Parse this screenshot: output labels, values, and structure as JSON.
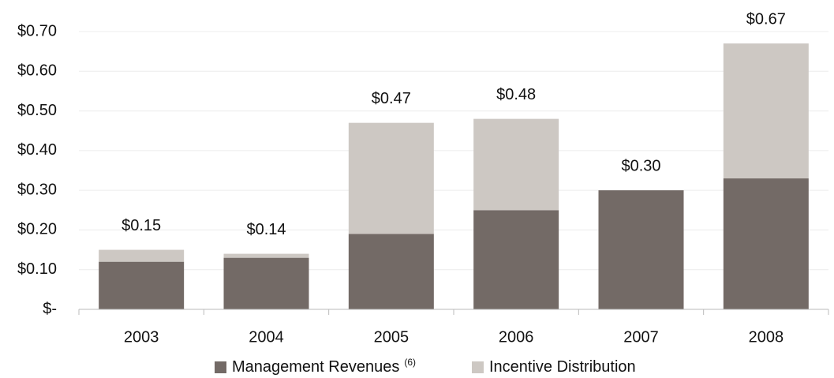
{
  "chart_data": {
    "type": "stacked_bar",
    "categories": [
      "2003",
      "2004",
      "2005",
      "2006",
      "2007",
      "2008"
    ],
    "series": [
      {
        "name": "Management Revenues",
        "color": "#736a66",
        "values": [
          0.12,
          0.13,
          0.19,
          0.25,
          0.3,
          0.33
        ]
      },
      {
        "name": "Incentive Distribution",
        "color": "#cdc8c3",
        "values": [
          0.03,
          0.01,
          0.28,
          0.23,
          0,
          0.34
        ]
      }
    ],
    "total_labels": [
      "$0.15",
      "$0.14",
      "$0.47",
      "$0.48",
      "$0.30",
      "$0.67"
    ],
    "legend_footnote": "(6)",
    "ylim": [
      0,
      0.7
    ],
    "yticks": [
      {
        "value": 0,
        "label": "$-"
      },
      {
        "value": 0.1,
        "label": "$0.10"
      },
      {
        "value": 0.2,
        "label": "$0.20"
      },
      {
        "value": 0.3,
        "label": "$0.30"
      },
      {
        "value": 0.4,
        "label": "$0.40"
      },
      {
        "value": 0.5,
        "label": "$0.50"
      },
      {
        "value": 0.6,
        "label": "$0.60"
      },
      {
        "value": 0.7,
        "label": "$0.70"
      }
    ],
    "grid": true
  }
}
